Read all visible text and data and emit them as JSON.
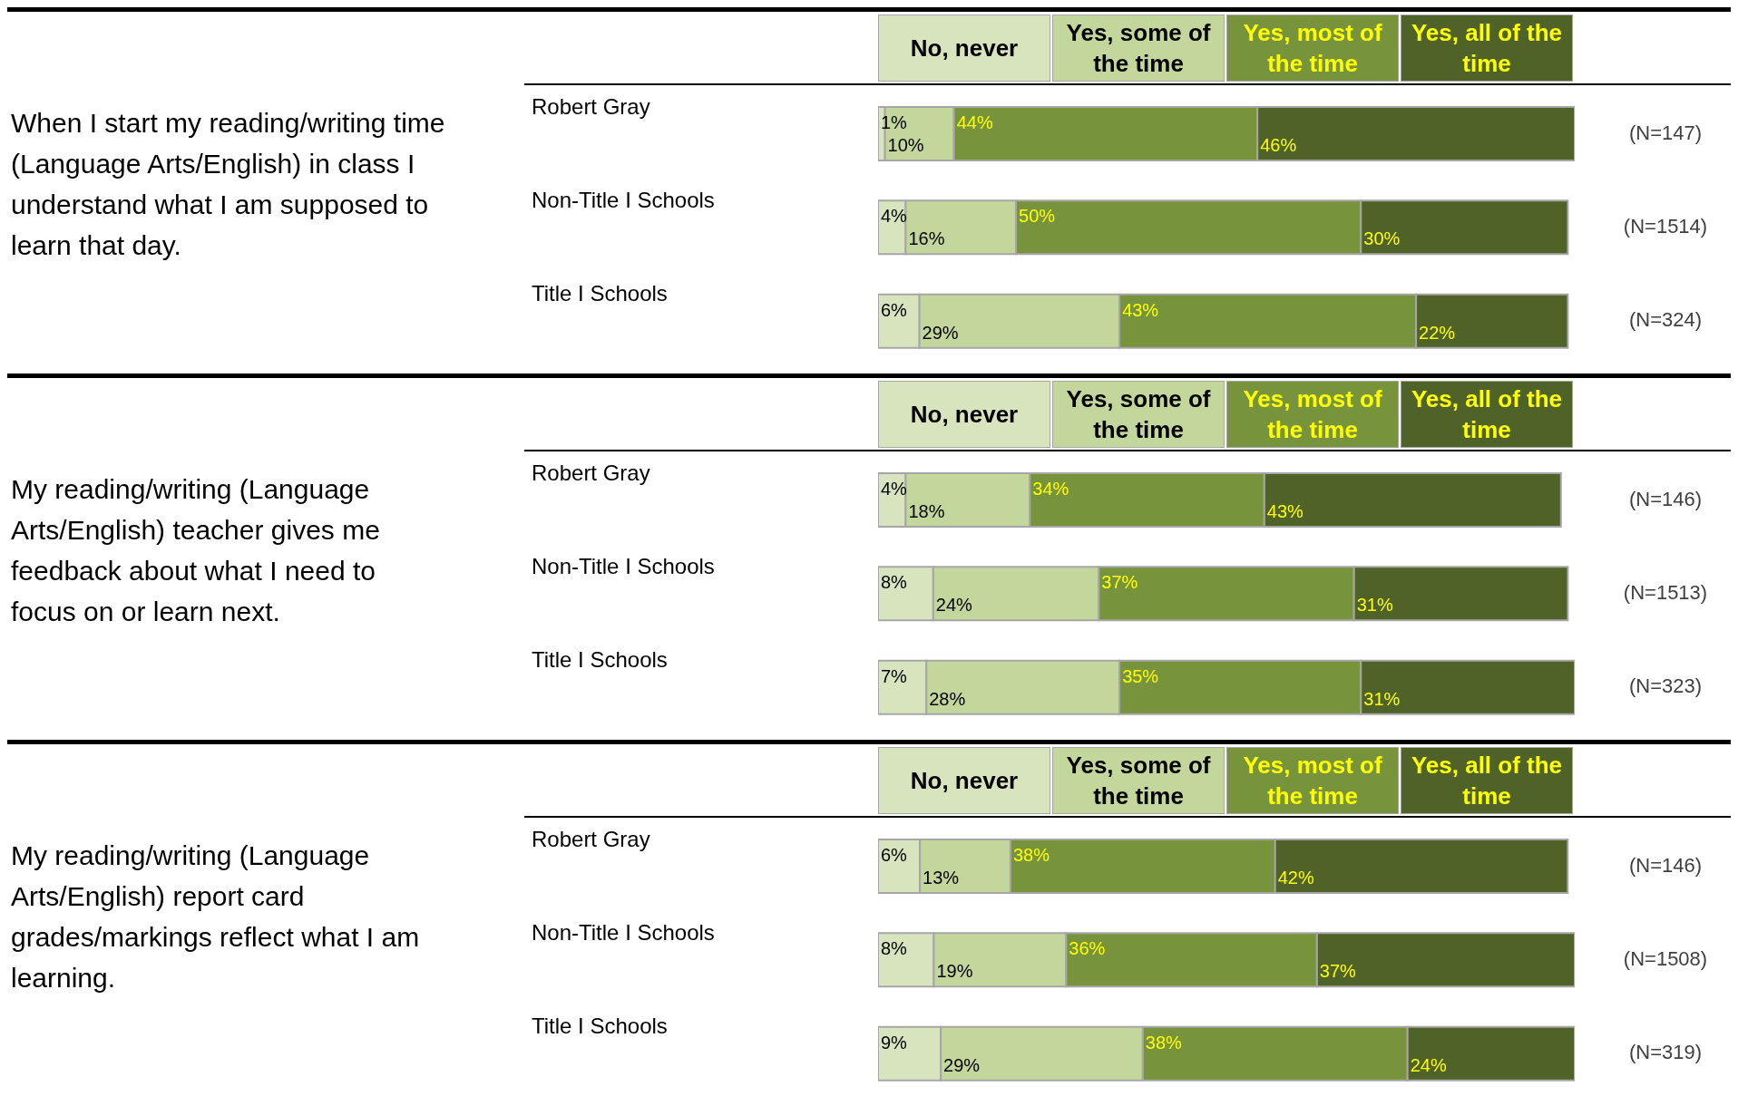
{
  "chart_data": [
    {
      "type": "bar",
      "orientation": "horizontal",
      "stacked": true,
      "legend": "top",
      "tick_labels": "y",
      "title": "When I start my reading/writing time (Language Arts/English) in class I understand what I am supposed to learn that day.",
      "categories": [
        "Robert Gray",
        "Non-Title I Schools",
        "Title I Schools"
      ],
      "annotations": [
        "(N=147)",
        "(N=1514)",
        "(N=324)"
      ],
      "series": [
        {
          "name": "No, never",
          "color": "#d7e4bd",
          "values": [
            1,
            4,
            6
          ],
          "value_labels": [
            "1%",
            "4%",
            "6%"
          ]
        },
        {
          "name": "Yes, some of the time",
          "color": "#c3d69b",
          "values": [
            10,
            16,
            29
          ],
          "value_labels": [
            "10%",
            "16%",
            "29%"
          ]
        },
        {
          "name": "Yes, most of the time",
          "color": "#77933c",
          "values": [
            44,
            50,
            43
          ],
          "value_labels": [
            "44%",
            "50%",
            "43%"
          ]
        },
        {
          "name": "Yes, all of the time",
          "color": "#4f6228",
          "values": [
            46,
            30,
            22
          ],
          "value_labels": [
            "46%",
            "30%",
            "22%"
          ]
        }
      ]
    },
    {
      "type": "bar",
      "orientation": "horizontal",
      "stacked": true,
      "legend": "top",
      "tick_labels": "y",
      "title": "My reading/writing (Language Arts/English) teacher gives me feedback about what I need to focus on or learn next.",
      "categories": [
        "Robert Gray",
        "Non-Title I Schools",
        "Title I Schools"
      ],
      "annotations": [
        "(N=146)",
        "(N=1513)",
        "(N=323)"
      ],
      "series": [
        {
          "name": "No, never",
          "color": "#d7e4bd",
          "values": [
            4,
            8,
            7
          ],
          "value_labels": [
            "4%",
            "8%",
            "7%"
          ]
        },
        {
          "name": "Yes, some of the time",
          "color": "#c3d69b",
          "values": [
            18,
            24,
            28
          ],
          "value_labels": [
            "18%",
            "24%",
            "28%"
          ]
        },
        {
          "name": "Yes, most of the time",
          "color": "#77933c",
          "values": [
            34,
            37,
            35
          ],
          "value_labels": [
            "34%",
            "37%",
            "35%"
          ]
        },
        {
          "name": "Yes, all of the time",
          "color": "#4f6228",
          "values": [
            43,
            31,
            31
          ],
          "value_labels": [
            "43%",
            "31%",
            "31%"
          ]
        }
      ]
    },
    {
      "type": "bar",
      "orientation": "horizontal",
      "stacked": true,
      "legend": "top",
      "tick_labels": "y",
      "title": "My reading/writing (Language Arts/English) report card grades/markings reflect what I am learning.",
      "categories": [
        "Robert Gray",
        "Non-Title I Schools",
        "Title I Schools"
      ],
      "annotations": [
        "(N=146)",
        "(N=1508)",
        "(N=319)"
      ],
      "series": [
        {
          "name": "No, never",
          "color": "#d7e4bd",
          "values": [
            6,
            8,
            9
          ],
          "value_labels": [
            "6%",
            "8%",
            "9%"
          ]
        },
        {
          "name": "Yes, some of the time",
          "color": "#c3d69b",
          "values": [
            13,
            19,
            29
          ],
          "value_labels": [
            "13%",
            "19%",
            "29%"
          ]
        },
        {
          "name": "Yes, most of the time",
          "color": "#77933c",
          "values": [
            38,
            36,
            38
          ],
          "value_labels": [
            "38%",
            "36%",
            "38%"
          ]
        },
        {
          "name": "Yes, all of the time",
          "color": "#4f6228",
          "values": [
            42,
            37,
            24
          ],
          "value_labels": [
            "42%",
            "37%",
            "24%"
          ]
        }
      ]
    }
  ]
}
